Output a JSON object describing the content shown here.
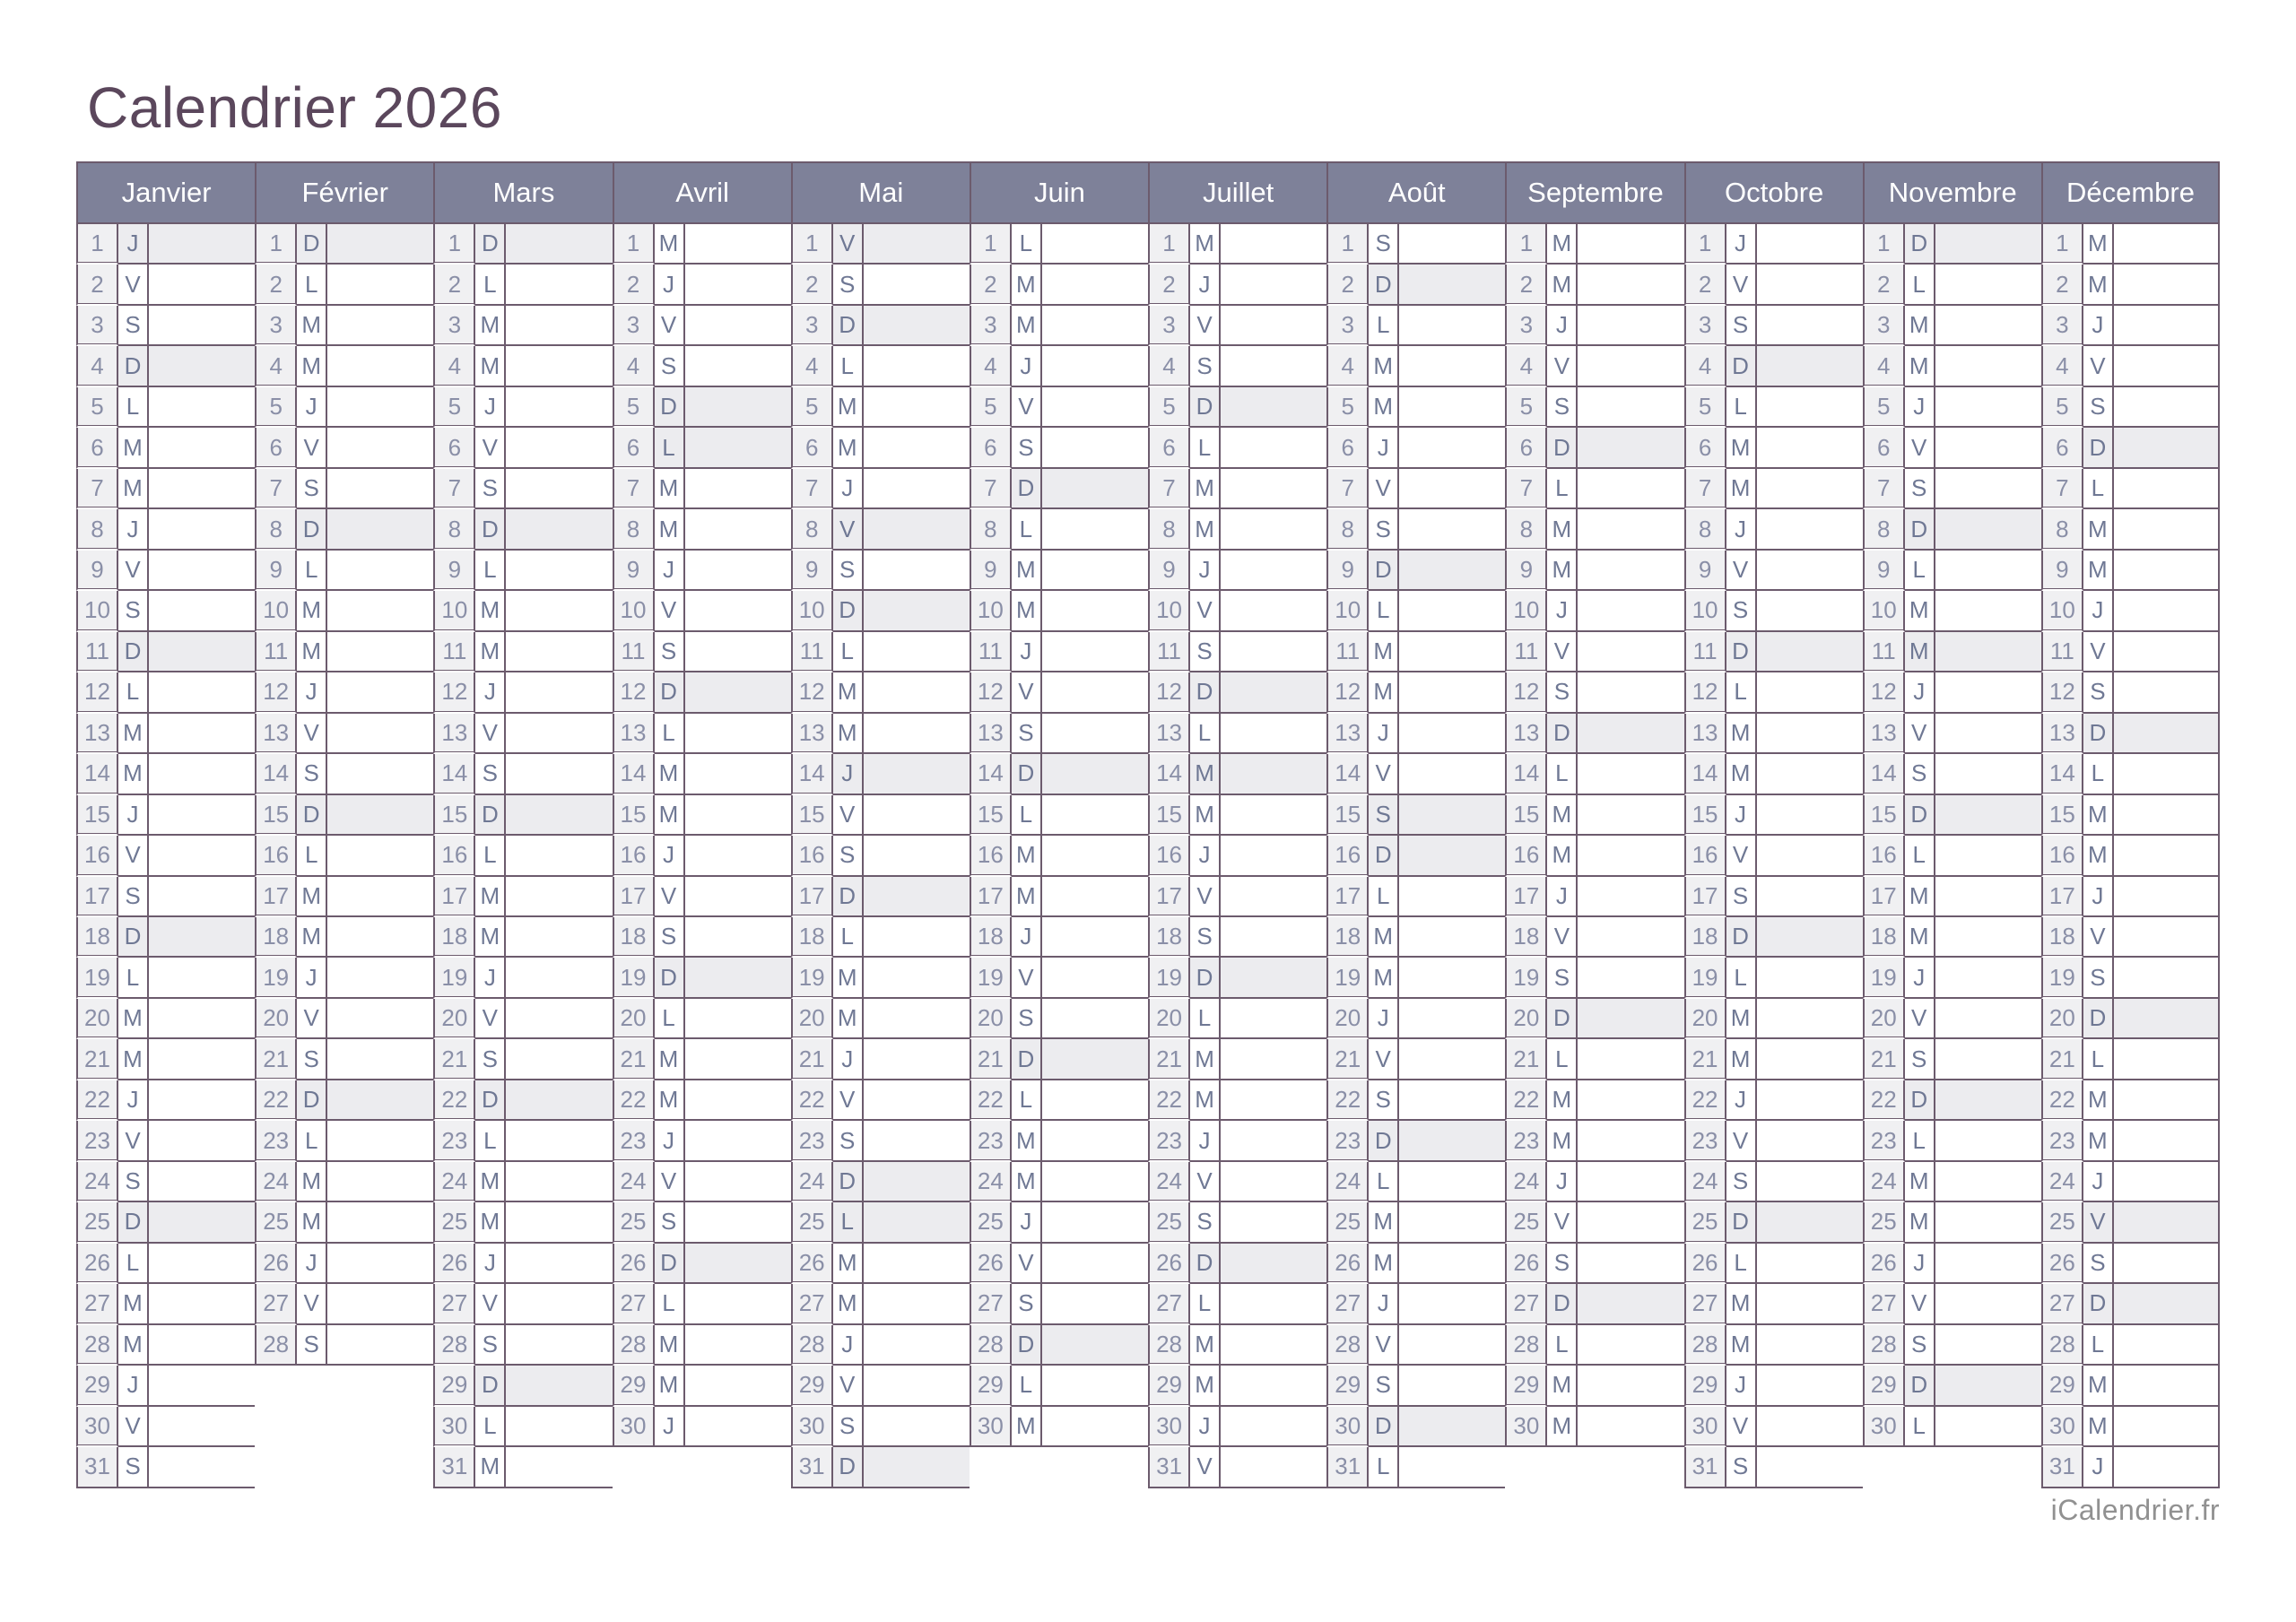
{
  "title": "Calendrier 2026",
  "footer": "iCalendrier.fr",
  "sunday_letter": "D",
  "weekday_letters": [
    "L",
    "M",
    "M",
    "J",
    "V",
    "S",
    "D"
  ],
  "colors": {
    "title_text": "#5b475c",
    "header_bg": "#7e8199",
    "header_text": "#ffffff",
    "grid_border": "#6c5b6d",
    "day_number_bg": "#f0f0f2",
    "highlight_bg": "#ececef",
    "day_number_text": "#8a8fa7",
    "day_letter_text": "#6f7894",
    "footer_text": "#919191"
  },
  "months": [
    {
      "name": "Janvier",
      "letters": "JVSDLMMJVSDLMMJVSDLMMJVSDLMMJVS",
      "holidays": [
        1
      ]
    },
    {
      "name": "Février",
      "letters": "DLMMJVSDLMMJVSDLMMJVSDLMMJVS",
      "holidays": []
    },
    {
      "name": "Mars",
      "letters": "DLMMJVSDLMMJVSDLMMJVSDLMMJVSDLM",
      "holidays": []
    },
    {
      "name": "Avril",
      "letters": "MJVSDLMMJVSDLMMJVSDLMMJVSDLMMJ",
      "holidays": [
        6
      ]
    },
    {
      "name": "Mai",
      "letters": "VSDLMMJVSDLMMJVSDLMMJVSDLMMJVSD",
      "holidays": [
        1,
        8,
        14,
        25
      ]
    },
    {
      "name": "Juin",
      "letters": "LMMJVSDLMMJVSDLMMJVSDLMMJVSDLM",
      "holidays": []
    },
    {
      "name": "Juillet",
      "letters": "MJVSDLMMJVSDLMMJVSDLMMJVSDLMMJV",
      "holidays": [
        14
      ]
    },
    {
      "name": "Août",
      "letters": "SDLMMJVSDLMMJVSDLMMJVSDLMMJVSDL",
      "holidays": [
        15
      ]
    },
    {
      "name": "Septembre",
      "letters": "MMJVSDLMMJVSDLMMJVSDLMMJVSDLMM",
      "holidays": []
    },
    {
      "name": "Octobre",
      "letters": "JVSDLMMJVSDLMMJVSDLMMJVSDLMMJVS",
      "holidays": []
    },
    {
      "name": "Novembre",
      "letters": "DLMMJVSDLMMJVSDLMMJVSDLMMJVSDL",
      "holidays": [
        1,
        11
      ]
    },
    {
      "name": "Décembre",
      "letters": "MMJVSDLMMJVSDLMMJVSDLMMJVSDLMMJ",
      "holidays": [
        25
      ]
    }
  ]
}
